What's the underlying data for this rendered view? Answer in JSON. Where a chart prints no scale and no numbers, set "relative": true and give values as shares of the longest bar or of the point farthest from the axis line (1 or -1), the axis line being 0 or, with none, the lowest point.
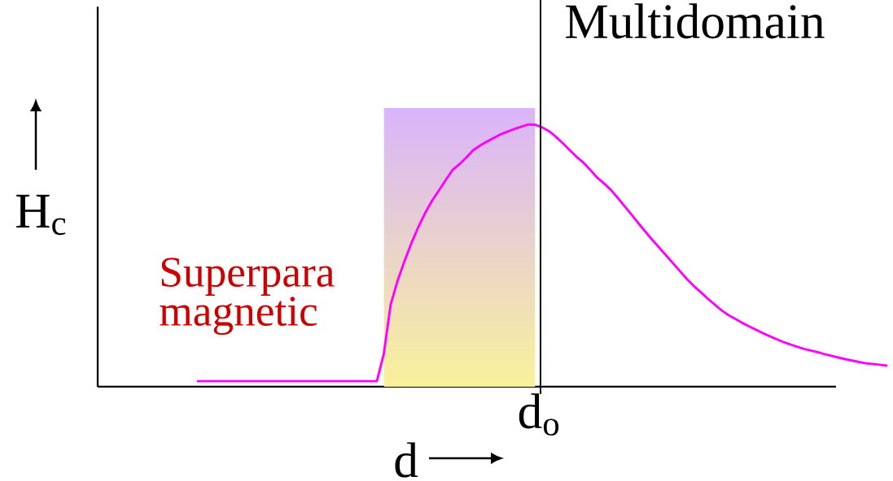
{
  "chart_data": {
    "type": "line",
    "relative": true,
    "xlabel": "d",
    "ylabel": "H$_{c}$",
    "categories": [
      null,
      null,
      null,
      null,
      null,
      null,
      null,
      null,
      null,
      null,
      null,
      null,
      null,
      null,
      null,
      null,
      null,
      null,
      null,
      null,
      null,
      null,
      null,
      null,
      null,
      null,
      null,
      null,
      null,
      null,
      null,
      null,
      null,
      null,
      null,
      null,
      null,
      null,
      null,
      null,
      null,
      null,
      null,
      null,
      null,
      null,
      null,
      null,
      null,
      null,
      null,
      null,
      null,
      null,
      null,
      null,
      null,
      null,
      null,
      null,
      null,
      null,
      null,
      null,
      null,
      null,
      null,
      null,
      null,
      null,
      null,
      null,
      null,
      null,
      null,
      null,
      null,
      null,
      null,
      null,
      null,
      null,
      null,
      null,
      null,
      null,
      null,
      null,
      null,
      null,
      null,
      null,
      null,
      null,
      null,
      null,
      null,
      null,
      null,
      null,
      null
    ],
    "series": [
      {
        "type": "area",
        "color": "#d9b4fb",
        "values": [
          null,
          null,
          null,
          null,
          null,
          null,
          null,
          null,
          null,
          null,
          null,
          null,
          null,
          null,
          null,
          null,
          null,
          null,
          null,
          null,
          null,
          null,
          null,
          null,
          null,
          null,
          null,
          1,
          1,
          1,
          1,
          1,
          1,
          1,
          1,
          1,
          1,
          1,
          1,
          1,
          1,
          1,
          1,
          1,
          1,
          1,
          1,
          1,
          1,
          1,
          null,
          null,
          null,
          null,
          null,
          null,
          null,
          null,
          null,
          null,
          null,
          null,
          null,
          null,
          null,
          null,
          null,
          null,
          null,
          null,
          null,
          null,
          null,
          null,
          null,
          null,
          null,
          null,
          null,
          null,
          null,
          null,
          null,
          null,
          null,
          null,
          null,
          null,
          null,
          null,
          null,
          null,
          null,
          null,
          null,
          null,
          null,
          null,
          null,
          null,
          null
        ]
      },
      {
        "color": "#ff00ff",
        "values": [
          0.02,
          0.02,
          0.02,
          0.02,
          0.02,
          0.02,
          0.02,
          0.02,
          0.02,
          0.02,
          0.02,
          0.02,
          0.02,
          0.02,
          0.02,
          0.02,
          0.02,
          0.02,
          0.02,
          0.02,
          0.02,
          0.02,
          0.02,
          0.02,
          0.02,
          0.02,
          0.02,
          0.117,
          0.294,
          0.38,
          0.45,
          0.514,
          0.572,
          0.623,
          0.667,
          0.704,
          0.742,
          0.778,
          0.799,
          0.823,
          0.849,
          0.866,
          0.88,
          0.893,
          0.906,
          0.916,
          0.925,
          0.933,
          0.941,
          0.94,
          0.931,
          0.917,
          0.897,
          0.874,
          0.849,
          0.825,
          0.804,
          0.778,
          0.75,
          0.729,
          0.706,
          0.677,
          0.647,
          0.617,
          0.586,
          0.556,
          0.527,
          0.499,
          0.471,
          0.443,
          0.415,
          0.387,
          0.362,
          0.34,
          0.317,
          0.296,
          0.275,
          0.258,
          0.244,
          0.23,
          0.217,
          0.205,
          0.193,
          0.182,
          0.171,
          0.161,
          0.152,
          0.144,
          0.136,
          0.13,
          0.124,
          0.117,
          0.111,
          0.105,
          0.099,
          0.094,
          0.089,
          0.084,
          0.082,
          0.079,
          0.076
        ]
      }
    ],
    "annotations": [
      "Superpara magnetic",
      "Multidomain",
      "d$_{o}$"
    ],
    "line_style": "solid"
  }
}
